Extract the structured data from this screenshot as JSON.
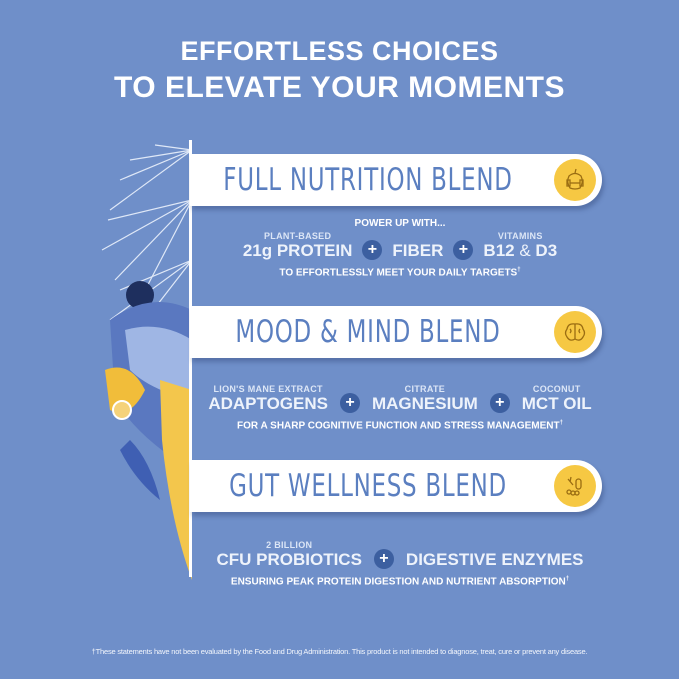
{
  "title": {
    "line1": "EFFORTLESS CHOICES",
    "line2": "TO ELEVATE YOUR MOMENTS"
  },
  "colors": {
    "background": "#6f8fc9",
    "heading": "#5b7fc0",
    "badge": "#f6c843",
    "plus": "#3c5fa0"
  },
  "blends": [
    {
      "name": "FULL NUTRITION BLEND",
      "icon": "apple-dumbbell-icon",
      "kicker": "POWER UP WITH...",
      "items": [
        {
          "sub": "PLANT-BASED",
          "main": "21g PROTEIN"
        },
        {
          "sub": "",
          "main": "FIBER"
        },
        {
          "sub": "VITAMINS",
          "main_a": "B12",
          "amp": "&",
          "main_b": "D3"
        }
      ],
      "tagline": "TO EFFORTLESSLY MEET YOUR DAILY TARGETS",
      "mark": "†"
    },
    {
      "name": "MOOD & MIND BLEND",
      "icon": "brain-icon",
      "items": [
        {
          "sub": "LION'S MANE EXTRACT",
          "main": "ADAPTOGENS"
        },
        {
          "sub": "CITRATE",
          "main": "MAGNESIUM"
        },
        {
          "sub": "COCONUT",
          "main": "MCT OIL"
        }
      ],
      "tagline": "FOR A SHARP COGNITIVE FUNCTION AND STRESS MANAGEMENT",
      "mark": "†"
    },
    {
      "name": "GUT WELLNESS BLEND",
      "icon": "probiotic-bacteria-icon",
      "items": [
        {
          "sub": "2 BILLION",
          "main": "CFU PROBIOTICS"
        },
        {
          "sub": "",
          "main": "DIGESTIVE ENZYMES"
        }
      ],
      "tagline": "ENSURING PEAK PROTEIN DIGESTION AND NUTRIENT ABSORPTION",
      "mark": "†"
    }
  ],
  "plus_symbol": "+",
  "disclaimer": "†These statements have not been evaluated by the Food and Drug Administration. This product is not intended to diagnose, treat, cure or prevent any disease."
}
